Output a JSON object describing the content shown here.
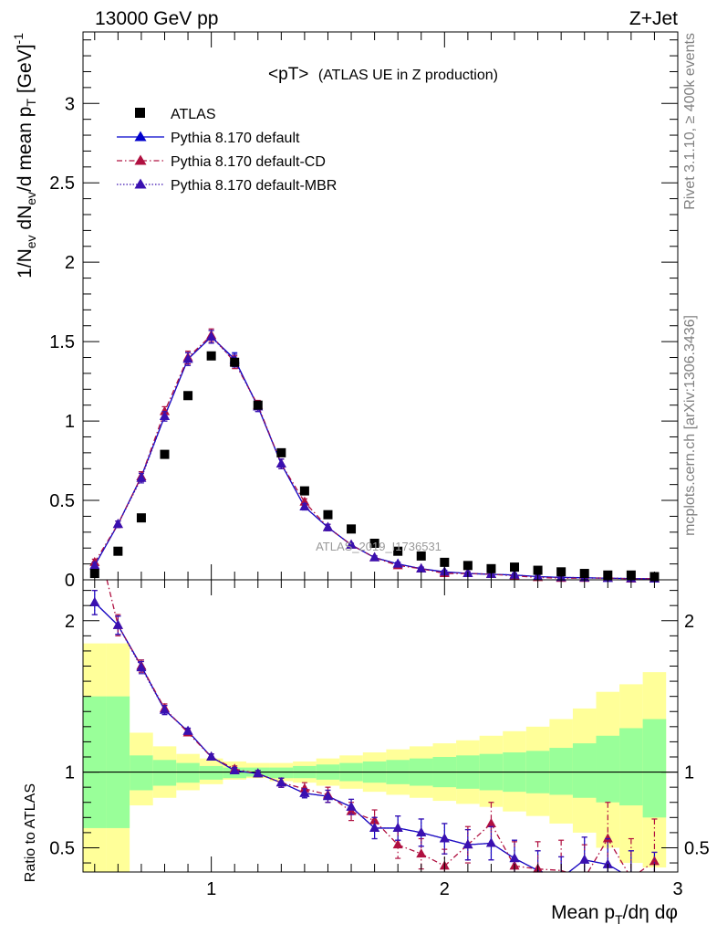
{
  "header": {
    "left": "13000 GeV pp",
    "right": "Z+Jet"
  },
  "side_text": {
    "top": "Rivet 3.1.10, ≥ 400k events",
    "bottom": "mcplots.cern.ch [arXiv:1306.3436]"
  },
  "watermark": "ATLAS_2019_I1736531",
  "chart_data": [
    {
      "type": "scatter",
      "title_main": "<pT>",
      "title_sub": "(ATLAS UE in Z production)",
      "ylabel": "1/N_ev dN_ev/d mean p_T [GeV]^-1",
      "xlim": [
        0.45,
        3.0
      ],
      "ylim": [
        0,
        3.45
      ],
      "yticks": [
        0,
        0.5,
        1,
        1.5,
        2,
        2.5,
        3
      ],
      "yticklabels": [
        "0",
        "0.5",
        "1",
        "1.5",
        "2",
        "2.5",
        "3"
      ],
      "grid": false,
      "legend_position": "top-left",
      "legend": [
        {
          "label": "ATLAS",
          "marker": "square",
          "color": "#000000"
        },
        {
          "label": "Pythia 8.170 default",
          "marker": "triangle",
          "line": "solid",
          "color": "#0000cc"
        },
        {
          "label": "Pythia 8.170 default-CD",
          "marker": "triangle",
          "line": "dashdot",
          "color": "#b01040"
        },
        {
          "label": "Pythia 8.170 default-MBR",
          "marker": "triangle",
          "line": "dotted",
          "color": "#3a10b0"
        }
      ],
      "x": [
        0.5,
        0.6,
        0.7,
        0.8,
        0.9,
        1.0,
        1.1,
        1.2,
        1.3,
        1.4,
        1.5,
        1.6,
        1.7,
        1.8,
        1.9,
        2.0,
        2.1,
        2.2,
        2.3,
        2.4,
        2.5,
        2.6,
        2.7,
        2.8,
        2.9
      ],
      "series": [
        {
          "name": "ATLAS",
          "values": [
            0.04,
            0.18,
            0.39,
            0.79,
            1.16,
            1.41,
            1.37,
            1.1,
            0.8,
            0.56,
            0.41,
            0.32,
            0.23,
            0.18,
            0.15,
            0.11,
            0.09,
            0.07,
            0.08,
            0.06,
            0.05,
            0.04,
            0.03,
            0.03,
            0.02
          ]
        },
        {
          "name": "Pythia 8.170 default",
          "values": [
            0.09,
            0.35,
            0.65,
            1.03,
            1.39,
            1.53,
            1.39,
            1.09,
            0.73,
            0.46,
            0.33,
            0.22,
            0.14,
            0.1,
            0.07,
            0.05,
            0.04,
            0.035,
            0.03,
            0.02,
            0.015,
            0.013,
            0.01,
            0.008,
            0.006
          ],
          "errors": [
            0.02,
            0.02,
            0.03,
            0.03,
            0.04,
            0.04,
            0.04,
            0.03,
            0.03,
            0.02,
            0.02,
            0.01,
            0.01,
            0.01,
            0.01,
            0.01,
            0.01,
            0.01,
            0.01,
            0.01,
            0.01,
            0.01,
            0.01,
            0.01,
            0.01
          ]
        },
        {
          "name": "Pythia 8.170 default-CD",
          "values": [
            0.11,
            0.35,
            0.65,
            1.06,
            1.4,
            1.54,
            1.37,
            1.1,
            0.73,
            0.49,
            0.33,
            0.22,
            0.14,
            0.09,
            0.07,
            0.04,
            0.04,
            0.035,
            0.025,
            0.015,
            0.01,
            0.01,
            0.012,
            0.006,
            0.008
          ],
          "errors": [
            0.02,
            0.02,
            0.03,
            0.03,
            0.04,
            0.04,
            0.04,
            0.03,
            0.03,
            0.02,
            0.02,
            0.01,
            0.01,
            0.01,
            0.01,
            0.01,
            0.01,
            0.01,
            0.01,
            0.01,
            0.01,
            0.01,
            0.01,
            0.01,
            0.01
          ]
        },
        {
          "name": "Pythia 8.170 default-MBR",
          "values": [
            0.09,
            0.35,
            0.64,
            1.03,
            1.39,
            1.53,
            1.38,
            1.09,
            0.73,
            0.46,
            0.33,
            0.22,
            0.14,
            0.1,
            0.07,
            0.05,
            0.04,
            0.035,
            0.03,
            0.02,
            0.015,
            0.013,
            0.01,
            0.008,
            0.006
          ],
          "errors": [
            0.02,
            0.02,
            0.03,
            0.03,
            0.04,
            0.04,
            0.04,
            0.03,
            0.03,
            0.02,
            0.02,
            0.01,
            0.01,
            0.01,
            0.01,
            0.01,
            0.01,
            0.01,
            0.01,
            0.01,
            0.01,
            0.01,
            0.01,
            0.01,
            0.01
          ]
        }
      ]
    },
    {
      "type": "line",
      "ylabel": "Ratio to ATLAS",
      "xlabel": "Mean p_T/dη dφ",
      "xlim": [
        0.45,
        3.0
      ],
      "ylim": [
        0.34,
        2.27
      ],
      "xticks": [
        1,
        2,
        3
      ],
      "xticklabels": [
        "1",
        "2",
        "3"
      ],
      "yticks": [
        0.5,
        1,
        2
      ],
      "yticklabels": [
        "0.5",
        "1",
        "2"
      ],
      "reference_line": 1,
      "band_colors": {
        "inner": "#99ff99",
        "outer": "#ffff99"
      },
      "bands": {
        "x_edges": [
          0.45,
          0.55,
          0.65,
          0.75,
          0.85,
          0.95,
          1.05,
          1.15,
          1.25,
          1.35,
          1.45,
          1.55,
          1.65,
          1.75,
          1.85,
          1.95,
          2.05,
          2.15,
          2.25,
          2.35,
          2.45,
          2.55,
          2.65,
          2.75,
          2.85,
          2.95
        ],
        "inner_low": [
          0.63,
          0.63,
          0.88,
          0.91,
          0.93,
          0.95,
          0.96,
          0.97,
          0.96,
          0.96,
          0.95,
          0.94,
          0.93,
          0.92,
          0.91,
          0.9,
          0.89,
          0.88,
          0.87,
          0.86,
          0.85,
          0.83,
          0.8,
          0.78,
          0.7
        ],
        "inner_high": [
          1.5,
          1.5,
          1.11,
          1.08,
          1.06,
          1.04,
          1.03,
          1.03,
          1.03,
          1.04,
          1.05,
          1.06,
          1.07,
          1.08,
          1.09,
          1.1,
          1.11,
          1.12,
          1.13,
          1.14,
          1.16,
          1.19,
          1.24,
          1.29,
          1.35
        ],
        "outer_low": [
          0.3,
          0.3,
          0.78,
          0.83,
          0.88,
          0.92,
          0.95,
          0.96,
          0.94,
          0.93,
          0.91,
          0.89,
          0.87,
          0.85,
          0.83,
          0.81,
          0.79,
          0.77,
          0.74,
          0.71,
          0.66,
          0.6,
          0.5,
          0.4,
          0.37
        ],
        "outer_high": [
          1.85,
          1.85,
          1.26,
          1.17,
          1.12,
          1.09,
          1.07,
          1.06,
          1.06,
          1.07,
          1.09,
          1.11,
          1.13,
          1.15,
          1.17,
          1.19,
          1.21,
          1.24,
          1.27,
          1.3,
          1.35,
          1.42,
          1.53,
          1.58,
          1.66
        ]
      },
      "x": [
        0.5,
        0.6,
        0.7,
        0.8,
        0.9,
        1.0,
        1.1,
        1.2,
        1.3,
        1.4,
        1.5,
        1.6,
        1.7,
        1.8,
        1.9,
        2.0,
        2.1,
        2.2,
        2.3,
        2.4,
        2.5,
        2.6,
        2.7,
        2.8,
        2.9
      ],
      "series": [
        {
          "name": "Pythia 8.170 default",
          "color": "#0000cc",
          "line": "solid",
          "values": [
            2.12,
            1.97,
            1.7,
            1.41,
            1.27,
            1.1,
            1.01,
            0.99,
            0.93,
            0.86,
            0.84,
            0.77,
            0.63,
            0.63,
            0.6,
            0.56,
            0.52,
            0.53,
            0.43,
            0.35,
            0.3,
            0.42,
            0.39,
            0.3,
            0.27
          ],
          "errors": [
            0.08,
            0.06,
            0.04,
            0.03,
            0.02,
            0.02,
            0.02,
            0.02,
            0.03,
            0.03,
            0.04,
            0.05,
            0.07,
            0.08,
            0.09,
            0.1,
            0.1,
            0.11,
            0.12,
            0.13,
            0.14,
            0.15,
            0.17,
            0.18,
            0.2
          ]
        },
        {
          "name": "Pythia 8.170 default-CD",
          "color": "#b01040",
          "line": "dashdot",
          "values": [
            2.6,
            1.97,
            1.7,
            1.42,
            1.26,
            1.1,
            1.02,
            0.99,
            0.93,
            0.89,
            0.85,
            0.74,
            0.68,
            0.52,
            0.46,
            0.38,
            0.52,
            0.66,
            0.38,
            0.36,
            0.35,
            0.3,
            0.56,
            0.3,
            0.41
          ],
          "errors": [
            0.1,
            0.07,
            0.04,
            0.03,
            0.02,
            0.02,
            0.02,
            0.02,
            0.03,
            0.04,
            0.05,
            0.06,
            0.07,
            0.09,
            0.1,
            0.11,
            0.12,
            0.14,
            0.16,
            0.18,
            0.2,
            0.22,
            0.24,
            0.26,
            0.28
          ]
        },
        {
          "name": "Pythia 8.170 default-MBR",
          "color": "#3a10b0",
          "line": "dotted",
          "values": [
            2.12,
            1.97,
            1.69,
            1.41,
            1.27,
            1.1,
            1.01,
            0.99,
            0.93,
            0.86,
            0.84,
            0.77,
            0.63,
            0.63,
            0.6,
            0.56,
            0.52,
            0.53,
            0.43,
            0.35,
            0.3,
            0.42,
            0.39,
            0.3,
            0.27
          ],
          "errors": [
            0.08,
            0.06,
            0.04,
            0.03,
            0.02,
            0.02,
            0.02,
            0.02,
            0.03,
            0.03,
            0.04,
            0.05,
            0.07,
            0.08,
            0.09,
            0.1,
            0.1,
            0.11,
            0.12,
            0.13,
            0.14,
            0.15,
            0.17,
            0.18,
            0.2
          ]
        }
      ]
    }
  ]
}
